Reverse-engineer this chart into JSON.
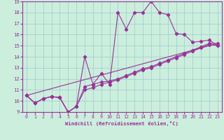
{
  "xlabel": "Windchill (Refroidissement éolien,°C)",
  "background_color": "#cceedd",
  "line_color": "#993399",
  "grid_color": "#99cccc",
  "xlim": [
    -0.5,
    23.5
  ],
  "ylim": [
    9,
    19
  ],
  "yticks": [
    9,
    10,
    11,
    12,
    13,
    14,
    15,
    16,
    17,
    18,
    19
  ],
  "xticks": [
    0,
    1,
    2,
    3,
    4,
    5,
    6,
    7,
    8,
    9,
    10,
    11,
    12,
    13,
    14,
    15,
    16,
    17,
    18,
    19,
    20,
    21,
    22,
    23
  ],
  "line1_x": [
    0,
    1,
    2,
    3,
    4,
    5,
    6,
    7,
    8,
    9,
    10,
    11,
    12,
    13,
    14,
    15,
    16,
    17,
    18,
    19,
    20,
    21,
    22,
    23
  ],
  "line1_y": [
    10.5,
    9.8,
    10.2,
    10.4,
    10.3,
    9.0,
    9.5,
    14.0,
    11.5,
    12.5,
    11.5,
    18.0,
    16.5,
    18.0,
    18.0,
    19.0,
    18.0,
    17.8,
    16.1,
    16.0,
    15.3,
    15.4,
    15.5,
    15.0
  ],
  "line2_x": [
    0,
    1,
    2,
    3,
    4,
    5,
    6,
    7,
    8,
    9,
    10,
    11,
    12,
    13,
    14,
    15,
    16,
    17,
    18,
    19,
    20,
    21,
    22,
    23
  ],
  "line2_y": [
    10.5,
    9.8,
    10.2,
    10.4,
    10.3,
    9.0,
    9.5,
    11.3,
    11.5,
    11.7,
    11.8,
    12.0,
    12.3,
    12.6,
    12.9,
    13.1,
    13.4,
    13.7,
    14.0,
    14.3,
    14.6,
    14.9,
    15.2,
    15.2
  ],
  "line3_x": [
    0,
    1,
    2,
    3,
    4,
    5,
    6,
    7,
    8,
    9,
    10,
    11,
    12,
    13,
    14,
    15,
    16,
    17,
    18,
    19,
    20,
    21,
    22,
    23
  ],
  "line3_y": [
    10.5,
    9.8,
    10.2,
    10.4,
    10.3,
    9.0,
    9.5,
    11.0,
    11.2,
    11.5,
    11.7,
    11.9,
    12.2,
    12.5,
    12.8,
    13.0,
    13.3,
    13.6,
    13.9,
    14.2,
    14.5,
    14.8,
    15.1,
    15.0
  ],
  "line4_x": [
    0,
    23
  ],
  "line4_y": [
    10.5,
    15.2
  ]
}
